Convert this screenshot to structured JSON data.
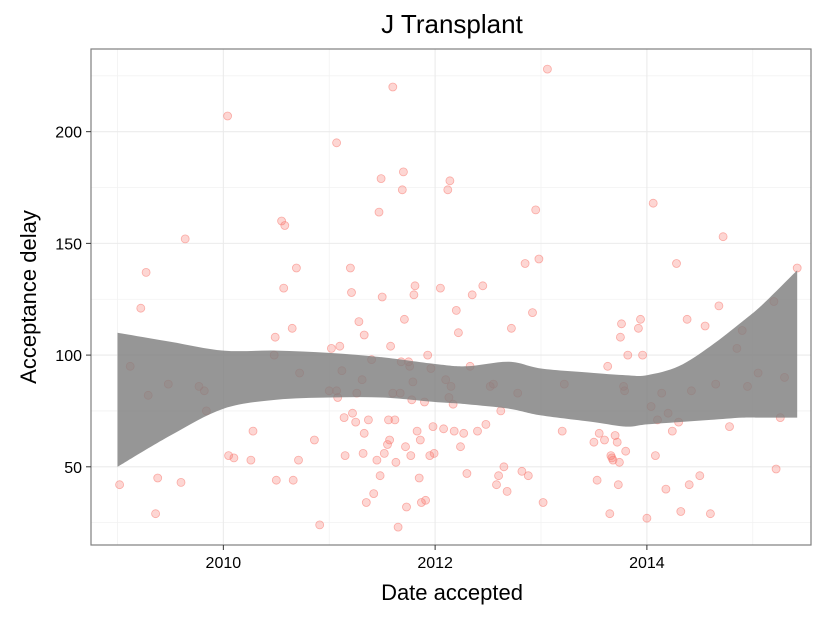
{
  "chart_data": {
    "type": "scatter",
    "title": "J Transplant",
    "xlabel": "Date accepted",
    "ylabel": "Acceptance delay",
    "xlim": [
      2008.75,
      2015.55
    ],
    "ylim": [
      15,
      237
    ],
    "x_ticks": [
      2010,
      2012,
      2014
    ],
    "x_tick_labels": [
      "2010",
      "2012",
      "2014"
    ],
    "y_ticks": [
      50,
      100,
      150,
      200
    ],
    "y_tick_labels": [
      "50",
      "100",
      "150",
      "200"
    ],
    "grid": true,
    "background": "#ffffff",
    "point_color": "#f8766d",
    "band_color": "#7f7f7f",
    "points": [
      [
        2009.02,
        42
      ],
      [
        2009.12,
        95
      ],
      [
        2009.22,
        121
      ],
      [
        2009.27,
        137
      ],
      [
        2009.29,
        82
      ],
      [
        2009.36,
        29
      ],
      [
        2009.38,
        45
      ],
      [
        2009.48,
        87
      ],
      [
        2009.6,
        43
      ],
      [
        2009.64,
        152
      ],
      [
        2009.77,
        86
      ],
      [
        2009.82,
        84
      ],
      [
        2009.84,
        75
      ],
      [
        2010.04,
        207
      ],
      [
        2010.05,
        55
      ],
      [
        2010.1,
        54
      ],
      [
        2010.26,
        53
      ],
      [
        2010.28,
        66
      ],
      [
        2010.48,
        100
      ],
      [
        2010.49,
        108
      ],
      [
        2010.5,
        44
      ],
      [
        2010.55,
        160
      ],
      [
        2010.57,
        130
      ],
      [
        2010.58,
        158
      ],
      [
        2010.65,
        112
      ],
      [
        2010.66,
        44
      ],
      [
        2010.69,
        139
      ],
      [
        2010.71,
        53
      ],
      [
        2010.72,
        92
      ],
      [
        2010.86,
        62
      ],
      [
        2010.91,
        24
      ],
      [
        2011.0,
        84
      ],
      [
        2011.02,
        103
      ],
      [
        2011.07,
        195
      ],
      [
        2011.07,
        84
      ],
      [
        2011.08,
        81
      ],
      [
        2011.1,
        104
      ],
      [
        2011.12,
        93
      ],
      [
        2011.14,
        72
      ],
      [
        2011.15,
        55
      ],
      [
        2011.2,
        139
      ],
      [
        2011.21,
        128
      ],
      [
        2011.22,
        74
      ],
      [
        2011.25,
        70
      ],
      [
        2011.26,
        83
      ],
      [
        2011.28,
        115
      ],
      [
        2011.31,
        89
      ],
      [
        2011.32,
        56
      ],
      [
        2011.33,
        109
      ],
      [
        2011.33,
        65
      ],
      [
        2011.35,
        34
      ],
      [
        2011.37,
        71
      ],
      [
        2011.4,
        98
      ],
      [
        2011.42,
        38
      ],
      [
        2011.45,
        53
      ],
      [
        2011.47,
        164
      ],
      [
        2011.48,
        46
      ],
      [
        2011.49,
        179
      ],
      [
        2011.5,
        126
      ],
      [
        2011.52,
        56
      ],
      [
        2011.55,
        60
      ],
      [
        2011.56,
        71
      ],
      [
        2011.57,
        62
      ],
      [
        2011.58,
        104
      ],
      [
        2011.6,
        220
      ],
      [
        2011.6,
        83
      ],
      [
        2011.62,
        71
      ],
      [
        2011.63,
        52
      ],
      [
        2011.65,
        23
      ],
      [
        2011.67,
        83
      ],
      [
        2011.68,
        97
      ],
      [
        2011.69,
        174
      ],
      [
        2011.7,
        182
      ],
      [
        2011.71,
        116
      ],
      [
        2011.72,
        59
      ],
      [
        2011.73,
        32
      ],
      [
        2011.75,
        97
      ],
      [
        2011.76,
        95
      ],
      [
        2011.77,
        55
      ],
      [
        2011.78,
        80
      ],
      [
        2011.79,
        88
      ],
      [
        2011.8,
        127
      ],
      [
        2011.81,
        131
      ],
      [
        2011.83,
        66
      ],
      [
        2011.85,
        45
      ],
      [
        2011.86,
        62
      ],
      [
        2011.87,
        34
      ],
      [
        2011.9,
        79
      ],
      [
        2011.91,
        35
      ],
      [
        2011.93,
        100
      ],
      [
        2011.95,
        55
      ],
      [
        2011.96,
        94
      ],
      [
        2011.98,
        68
      ],
      [
        2011.99,
        56
      ],
      [
        2012.05,
        130
      ],
      [
        2012.08,
        67
      ],
      [
        2012.1,
        89
      ],
      [
        2012.12,
        174
      ],
      [
        2012.13,
        81
      ],
      [
        2012.14,
        178
      ],
      [
        2012.15,
        86
      ],
      [
        2012.17,
        78
      ],
      [
        2012.18,
        66
      ],
      [
        2012.2,
        120
      ],
      [
        2012.22,
        110
      ],
      [
        2012.24,
        59
      ],
      [
        2012.27,
        65
      ],
      [
        2012.3,
        47
      ],
      [
        2012.33,
        95
      ],
      [
        2012.35,
        127
      ],
      [
        2012.4,
        66
      ],
      [
        2012.45,
        131
      ],
      [
        2012.48,
        69
      ],
      [
        2012.52,
        86
      ],
      [
        2012.55,
        87
      ],
      [
        2012.58,
        42
      ],
      [
        2012.6,
        46
      ],
      [
        2012.62,
        75
      ],
      [
        2012.65,
        50
      ],
      [
        2012.68,
        39
      ],
      [
        2012.72,
        112
      ],
      [
        2012.78,
        83
      ],
      [
        2012.82,
        48
      ],
      [
        2012.85,
        141
      ],
      [
        2012.88,
        46
      ],
      [
        2012.92,
        119
      ],
      [
        2012.95,
        165
      ],
      [
        2012.98,
        143
      ],
      [
        2013.02,
        34
      ],
      [
        2013.06,
        228
      ],
      [
        2013.2,
        66
      ],
      [
        2013.22,
        87
      ],
      [
        2013.5,
        61
      ],
      [
        2013.53,
        44
      ],
      [
        2013.55,
        65
      ],
      [
        2013.6,
        62
      ],
      [
        2013.63,
        95
      ],
      [
        2013.65,
        29
      ],
      [
        2013.66,
        55
      ],
      [
        2013.67,
        54
      ],
      [
        2013.68,
        53
      ],
      [
        2013.7,
        64
      ],
      [
        2013.72,
        61
      ],
      [
        2013.73,
        42
      ],
      [
        2013.74,
        52
      ],
      [
        2013.75,
        108
      ],
      [
        2013.76,
        114
      ],
      [
        2013.78,
        86
      ],
      [
        2013.79,
        84
      ],
      [
        2013.8,
        57
      ],
      [
        2013.82,
        100
      ],
      [
        2013.92,
        112
      ],
      [
        2013.94,
        116
      ],
      [
        2013.96,
        100
      ],
      [
        2014.0,
        27
      ],
      [
        2014.04,
        77
      ],
      [
        2014.06,
        168
      ],
      [
        2014.08,
        55
      ],
      [
        2014.1,
        71
      ],
      [
        2014.14,
        83
      ],
      [
        2014.18,
        40
      ],
      [
        2014.2,
        74
      ],
      [
        2014.24,
        66
      ],
      [
        2014.28,
        141
      ],
      [
        2014.3,
        70
      ],
      [
        2014.32,
        30
      ],
      [
        2014.38,
        116
      ],
      [
        2014.4,
        42
      ],
      [
        2014.42,
        84
      ],
      [
        2014.5,
        46
      ],
      [
        2014.55,
        113
      ],
      [
        2014.6,
        29
      ],
      [
        2014.65,
        87
      ],
      [
        2014.68,
        122
      ],
      [
        2014.72,
        153
      ],
      [
        2014.78,
        68
      ],
      [
        2014.85,
        103
      ],
      [
        2014.9,
        111
      ],
      [
        2014.95,
        86
      ],
      [
        2015.05,
        92
      ],
      [
        2015.2,
        124
      ],
      [
        2015.22,
        49
      ],
      [
        2015.26,
        72
      ],
      [
        2015.3,
        90
      ],
      [
        2015.42,
        139
      ]
    ],
    "smooth_band": {
      "x": [
        2009.0,
        2009.5,
        2010.0,
        2010.5,
        2011.0,
        2011.5,
        2012.0,
        2012.3,
        2012.7,
        2013.0,
        2013.5,
        2013.8,
        2014.0,
        2014.3,
        2014.6,
        2014.9,
        2015.1,
        2015.42
      ],
      "lower": [
        50,
        64,
        76,
        80,
        81,
        81,
        79,
        78,
        76,
        73,
        70,
        68,
        69,
        70,
        71,
        72,
        72,
        72
      ],
      "upper": [
        110,
        106,
        102,
        102,
        101,
        99,
        96,
        95,
        97,
        94,
        92,
        91,
        91,
        95,
        104,
        115,
        123,
        138
      ]
    }
  }
}
